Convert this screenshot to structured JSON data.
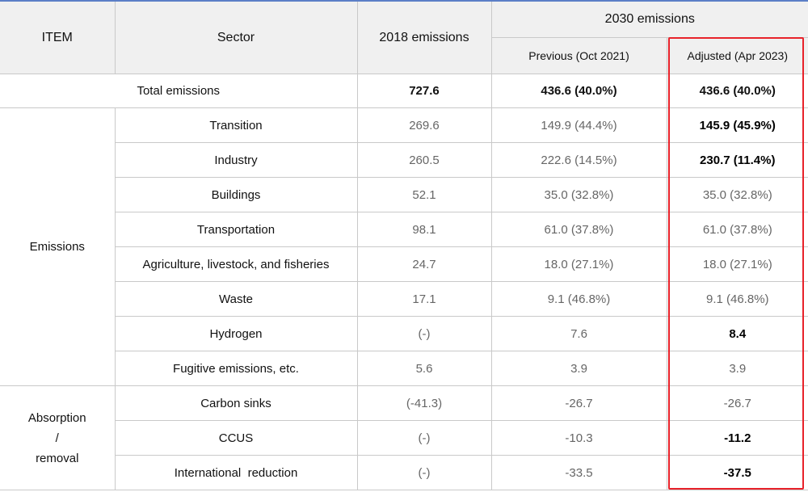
{
  "header": {
    "item": "ITEM",
    "sector": "Sector",
    "emissions_2018": "2018 emissions",
    "emissions_2030": "2030 emissions",
    "previous": "Previous (Oct 2021)",
    "adjusted": "Adjusted (Apr 2023)"
  },
  "total": {
    "label": "Total emissions",
    "v2018": "727.6",
    "previous": "436.6 (40.0%)",
    "adjusted": "436.6 (40.0%)"
  },
  "groups": {
    "emissions": "Emissions",
    "absorption_1": "Absorption",
    "absorption_2": "/",
    "absorption_3": "removal"
  },
  "rows": [
    {
      "sector": "Transition",
      "v2018": "269.6",
      "previous": "149.9 (44.4%)",
      "adjusted": "145.9 (45.9%)"
    },
    {
      "sector": "Industry",
      "v2018": "260.5",
      "previous": "222.6 (14.5%)",
      "adjusted": "230.7 (11.4%)"
    },
    {
      "sector": "Buildings",
      "v2018": "52.1",
      "previous": "35.0 (32.8%)",
      "adjusted": "35.0 (32.8%)"
    },
    {
      "sector": "Transportation",
      "v2018": "98.1",
      "previous": "61.0 (37.8%)",
      "adjusted": "61.0 (37.8%)"
    },
    {
      "sector": "Agriculture, livestock, and fisheries",
      "v2018": "24.7",
      "previous": "18.0 (27.1%)",
      "adjusted": "18.0 (27.1%)"
    },
    {
      "sector": "Waste",
      "v2018": "17.1",
      "previous": "9.1 (46.8%)",
      "adjusted": "9.1 (46.8%)"
    },
    {
      "sector": "Hydrogen",
      "v2018": "(-)",
      "previous": "7.6",
      "adjusted": "8.4"
    },
    {
      "sector": "Fugitive emissions, etc.",
      "v2018": "5.6",
      "previous": "3.9",
      "adjusted": "3.9"
    },
    {
      "sector": "Carbon sinks",
      "v2018": "(-41.3)",
      "previous": "-26.7",
      "adjusted": "-26.7"
    },
    {
      "sector": "CCUS",
      "v2018": "(-)",
      "previous": "-10.3",
      "adjusted": "-11.2"
    },
    {
      "sector": "International  reduction",
      "v2018": "(-)",
      "previous": "-33.5",
      "adjusted": "-37.5"
    }
  ],
  "colors": {
    "highlight_border": "#e8222a",
    "header_background": "#f0f0f0",
    "top_rule": "#5b7fc7"
  }
}
